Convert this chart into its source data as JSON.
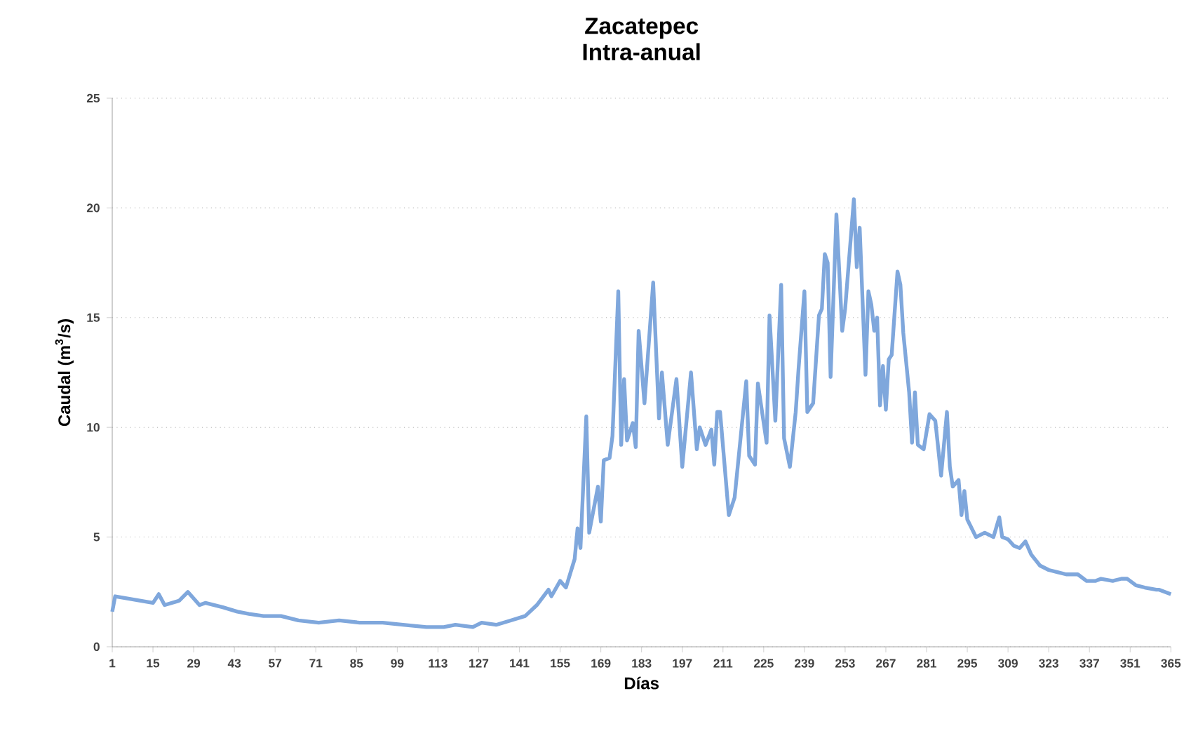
{
  "chart_data": {
    "type": "line",
    "title": "Zacatepec\nIntra-anual",
    "xlabel": "Días",
    "ylabel": "Caudal (m$^{3}$/s)",
    "x": [
      1,
      2,
      15,
      17,
      19,
      24,
      27,
      31,
      33,
      39,
      44,
      48,
      53,
      59,
      65,
      72,
      79,
      86,
      94,
      101,
      109,
      115,
      119,
      125,
      128,
      133,
      138,
      143,
      147,
      151,
      152,
      155,
      157,
      160,
      161,
      162,
      164,
      165,
      168,
      169,
      170,
      172,
      173,
      175,
      176,
      177,
      178,
      180,
      181,
      182,
      184,
      187,
      189,
      190,
      192,
      195,
      197,
      200,
      202,
      203,
      205,
      207,
      208,
      209,
      210,
      213,
      215,
      219,
      220,
      222,
      223,
      226,
      227,
      229,
      231,
      232,
      234,
      236,
      237,
      239,
      240,
      242,
      244,
      245,
      246,
      247,
      248,
      250,
      252,
      253,
      256,
      257,
      258,
      260,
      261,
      262,
      263,
      264,
      265,
      266,
      267,
      268,
      269,
      271,
      272,
      273,
      275,
      276,
      277,
      278,
      280,
      282,
      284,
      286,
      288,
      289,
      290,
      292,
      293,
      294,
      295,
      298,
      301,
      304,
      306,
      307,
      309,
      311,
      313,
      315,
      317,
      320,
      323,
      326,
      329,
      333,
      336,
      339,
      341,
      345,
      348,
      350,
      353,
      356,
      360,
      361,
      365
    ],
    "series": [
      {
        "color": "#7fa7dc",
        "values": [
          1.6,
          2.3,
          2.0,
          2.4,
          1.9,
          2.1,
          2.5,
          1.9,
          2.0,
          1.8,
          1.6,
          1.5,
          1.4,
          1.4,
          1.2,
          1.1,
          1.2,
          1.1,
          1.1,
          1.0,
          0.9,
          0.9,
          1.0,
          0.9,
          1.1,
          1.0,
          1.2,
          1.4,
          1.9,
          2.6,
          2.3,
          3.0,
          2.7,
          4.0,
          5.4,
          4.5,
          10.5,
          5.2,
          7.3,
          5.7,
          8.5,
          8.6,
          9.6,
          16.2,
          9.2,
          12.2,
          9.4,
          10.2,
          9.1,
          14.4,
          11.1,
          16.6,
          10.4,
          12.5,
          9.2,
          12.2,
          8.2,
          12.5,
          9.0,
          10.0,
          9.2,
          9.9,
          8.3,
          10.7,
          10.7,
          6.0,
          6.8,
          12.1,
          8.7,
          8.3,
          12.0,
          9.3,
          15.1,
          10.3,
          16.5,
          9.5,
          8.2,
          10.7,
          12.7,
          16.2,
          10.7,
          11.1,
          15.1,
          15.4,
          17.9,
          17.5,
          12.3,
          19.7,
          14.4,
          15.4,
          20.4,
          17.3,
          19.1,
          12.4,
          16.2,
          15.6,
          14.4,
          15.0,
          11.0,
          12.8,
          10.8,
          13.1,
          13.3,
          17.1,
          16.5,
          14.3,
          11.6,
          9.3,
          11.6,
          9.2,
          9.0,
          10.6,
          10.3,
          7.8,
          10.7,
          8.2,
          7.3,
          7.6,
          6.0,
          7.1,
          5.8,
          5.0,
          5.2,
          5.0,
          5.9,
          5.0,
          4.9,
          4.6,
          4.5,
          4.8,
          4.2,
          3.7,
          3.5,
          3.4,
          3.3,
          3.3,
          3.0,
          3.0,
          3.1,
          3.0,
          3.1,
          3.1,
          2.8,
          2.7,
          2.6,
          2.6,
          2.4
        ]
      }
    ],
    "xlim": [
      1,
      365
    ],
    "xticks": [
      1,
      15,
      29,
      43,
      57,
      71,
      85,
      99,
      113,
      127,
      141,
      155,
      169,
      183,
      197,
      211,
      225,
      239,
      253,
      267,
      281,
      295,
      309,
      323,
      337,
      351,
      365
    ],
    "ylim": [
      0,
      25
    ],
    "yticks": [
      0,
      5,
      10,
      15,
      20,
      25
    ],
    "grid": "y",
    "marker": "none",
    "line_style": "solid"
  }
}
